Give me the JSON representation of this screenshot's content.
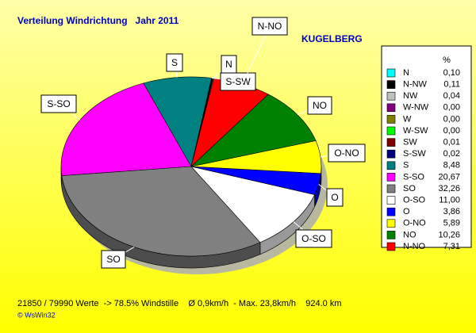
{
  "chart_data": {
    "type": "pie",
    "title": "Verteilung Windrichtung   Jahr 2011",
    "subtitle": "KUGELBERG",
    "legend_header": "%",
    "categories": [
      "N",
      "N-NW",
      "NW",
      "W-NW",
      "W",
      "W-SW",
      "SW",
      "S-SW",
      "S",
      "S-SO",
      "SO",
      "O-SO",
      "O",
      "O-NO",
      "NO",
      "N-NO"
    ],
    "values": [
      0.1,
      0.11,
      0.04,
      0,
      0,
      0,
      0.01,
      0.02,
      8.48,
      20.67,
      32.26,
      11,
      3.86,
      5.89,
      10.26,
      7.31
    ],
    "value_labels": [
      "0,10",
      "0,11",
      "0,04",
      "0,00",
      "0,00",
      "0,00",
      "0,01",
      "0,02",
      "8,48",
      "20,67",
      "32,26",
      "11,00",
      "3,86",
      "5,89",
      "10,26",
      "7,31"
    ],
    "colors": [
      "#00ffff",
      "#000000",
      "#c0c0c0",
      "#800080",
      "#808000",
      "#00ff00",
      "#800000",
      "#000080",
      "#008080",
      "#ff00ff",
      "#808080",
      "#ffffff",
      "#0000ff",
      "#ffff00",
      "#008000",
      "#ff0000"
    ],
    "footer": "21850 / 79990 Werte  -> 78.5% Windstille    Ø 0,9km/h  - Max. 23,8km/h    924.0 km",
    "credit": "© WsWin32"
  }
}
